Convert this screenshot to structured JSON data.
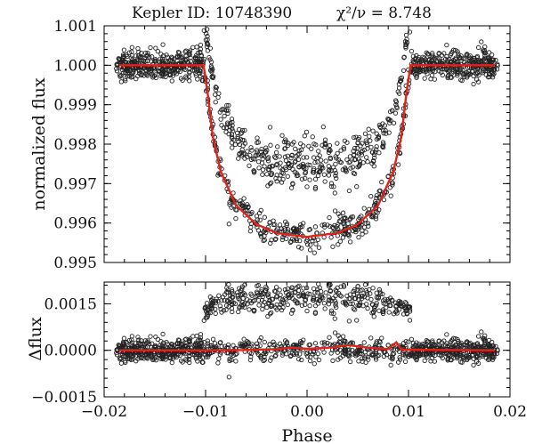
{
  "chart_data": [
    {
      "type": "scatter",
      "panel": "top",
      "title_object": "Kepler  ID: 10748390",
      "title_stat": "χ²/ν = 8.748",
      "xlabel": "Phase",
      "ylabel": "normalized  flux",
      "xlim": [
        -0.02,
        0.02
      ],
      "ylim": [
        0.995,
        1.001
      ],
      "yticks": [
        0.995,
        0.996,
        0.997,
        0.998,
        0.999,
        1.0,
        1.001
      ],
      "ytick_labels": [
        "0.995",
        "0.996",
        "0.997",
        "0.998",
        "0.999",
        "1.000",
        "1.001"
      ],
      "series": [
        {
          "name": "observed flux",
          "marker": "open circle",
          "color": "#222222",
          "description_points": {
            "out_of_transit_level": 1.0,
            "out_of_transit_scatter": 0.00018,
            "transit_ingress": -0.0102,
            "transit_egress": 0.0102,
            "transit_minimum": 0.99565,
            "upper_branch_excess": [
              0.0013,
              0.0024
            ]
          }
        },
        {
          "name": "transit model",
          "color": "#e0231b",
          "points": [
            [
              -0.0185,
              1.0
            ],
            [
              -0.0102,
              1.0
            ],
            [
              -0.0098,
              0.9993
            ],
            [
              -0.0093,
              0.9982
            ],
            [
              -0.0085,
              0.9973
            ],
            [
              -0.007,
              0.99645
            ],
            [
              -0.005,
              0.99597
            ],
            [
              -0.003,
              0.99575
            ],
            [
              0.0,
              0.99565
            ],
            [
              0.003,
              0.99575
            ],
            [
              0.005,
              0.99597
            ],
            [
              0.007,
              0.99645
            ],
            [
              0.0085,
              0.9973
            ],
            [
              0.0093,
              0.9982
            ],
            [
              0.0098,
              0.9993
            ],
            [
              0.0102,
              1.0
            ],
            [
              0.0185,
              1.0
            ]
          ]
        }
      ]
    },
    {
      "type": "scatter",
      "panel": "bottom",
      "xlabel": "Phase",
      "ylabel": "Δflux",
      "xlim": [
        -0.02,
        0.02
      ],
      "ylim": [
        -0.0015,
        0.0022
      ],
      "xticks": [
        -0.02,
        -0.01,
        0.0,
        0.01,
        0.02
      ],
      "xtick_labels": [
        "−0.02",
        "−0.01",
        "0.00",
        "0.01",
        "0.02"
      ],
      "yticks": [
        -0.0015,
        0.0,
        0.0015
      ],
      "ytick_labels": [
        "−0.0015",
        "0.0000",
        "0.0015"
      ],
      "series": [
        {
          "name": "residuals",
          "marker": "open circle",
          "color": "#222222",
          "description_points": {
            "baseline": 0.0,
            "scatter": 0.00018,
            "in_transit_excess": [
              0.0006,
              0.0016
            ]
          }
        },
        {
          "name": "residual trend",
          "color": "#e0231b",
          "points": [
            [
              -0.0185,
              0.0
            ],
            [
              -0.01,
              0.0
            ],
            [
              -0.006,
              1e-05
            ],
            [
              -0.003,
              4e-05
            ],
            [
              -0.0015,
              9e-05
            ],
            [
              0.0,
              5e-05
            ],
            [
              0.002,
              8e-05
            ],
            [
              0.004,
              0.00017
            ],
            [
              0.006,
              9e-05
            ],
            [
              0.008,
              4e-05
            ],
            [
              0.0088,
              0.00026
            ],
            [
              0.0093,
              2e-05
            ],
            [
              0.0185,
              0.0
            ]
          ]
        }
      ]
    }
  ]
}
